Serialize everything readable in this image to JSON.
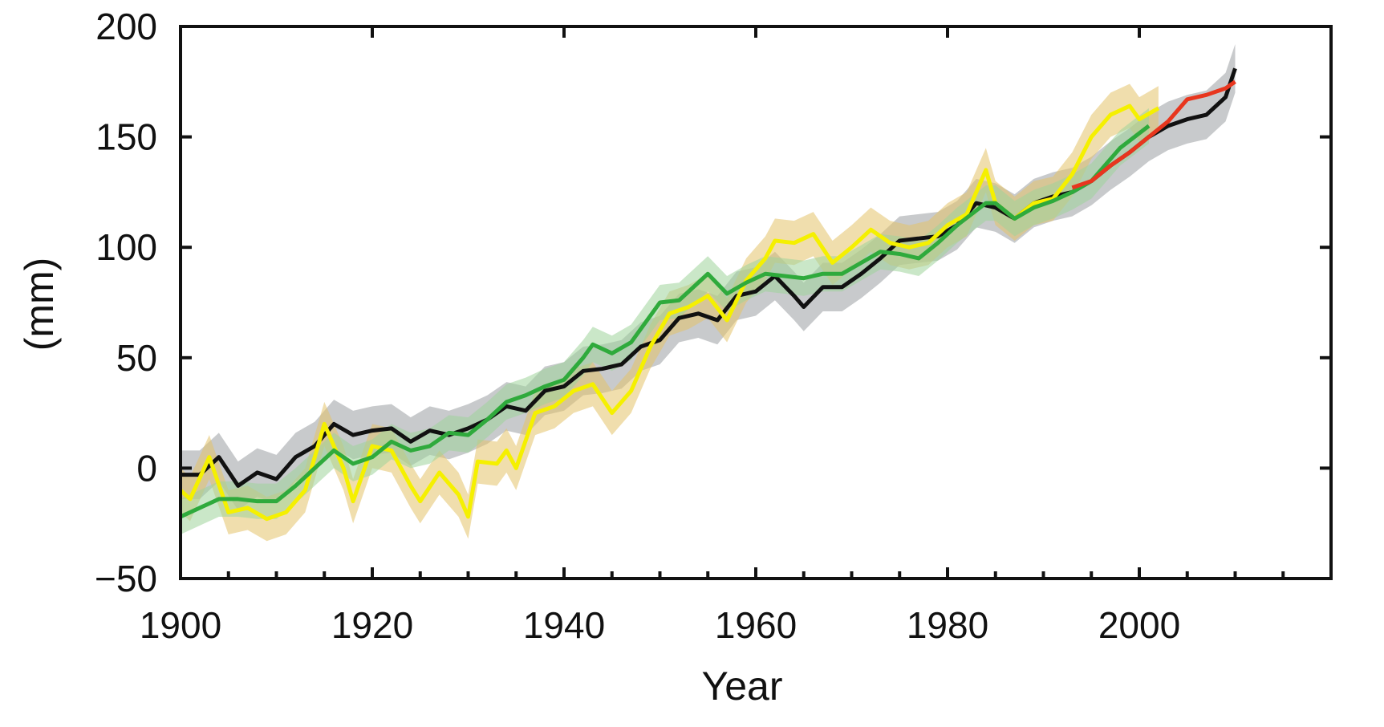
{
  "chart_data": {
    "type": "line",
    "title": "",
    "xlabel": "Year",
    "ylabel": "(mm)",
    "xlim": [
      1900,
      2020
    ],
    "ylim": [
      -50,
      200
    ],
    "xticks": [
      1900,
      1920,
      1940,
      1960,
      1980,
      2000
    ],
    "yticks": [
      -50,
      0,
      50,
      100,
      150,
      200
    ],
    "xtick_labels": [
      "1900",
      "1920",
      "1940",
      "1960",
      "1980",
      "2000"
    ],
    "ytick_labels": [
      "−50",
      "0",
      "50",
      "100",
      "150",
      "200"
    ],
    "grid": false,
    "legend": "none",
    "series": [
      {
        "name": "black",
        "color": "#111111",
        "band_color": "#9a9ea3",
        "uncertainty": 11,
        "x": [
          1900,
          1902,
          1904,
          1906,
          1908,
          1910,
          1912,
          1914,
          1916,
          1918,
          1920,
          1922,
          1924,
          1926,
          1928,
          1930,
          1932,
          1934,
          1936,
          1938,
          1940,
          1942,
          1944,
          1946,
          1948,
          1950,
          1952,
          1954,
          1956,
          1958,
          1960,
          1962,
          1964,
          1965,
          1967,
          1969,
          1971,
          1973,
          1975,
          1977,
          1979,
          1981,
          1983,
          1985,
          1987,
          1989,
          1991,
          1993,
          1995,
          1997,
          1999,
          2001,
          2003,
          2005,
          2007,
          2009,
          2010
        ],
        "y": [
          -3,
          -3,
          5,
          -8,
          -2,
          -5,
          5,
          10,
          20,
          15,
          17,
          18,
          12,
          17,
          15,
          18,
          22,
          28,
          26,
          35,
          37,
          44,
          45,
          47,
          55,
          58,
          68,
          70,
          67,
          78,
          80,
          87,
          78,
          73,
          82,
          82,
          88,
          95,
          103,
          104,
          105,
          110,
          120,
          118,
          113,
          120,
          123,
          125,
          130,
          137,
          143,
          150,
          155,
          158,
          160,
          168,
          181
        ]
      },
      {
        "name": "yellow",
        "color": "#f5f000",
        "band_color": "#e3c36a",
        "uncertainty": 10,
        "x": [
          1900,
          1901,
          1903,
          1905,
          1907,
          1909,
          1911,
          1913,
          1915,
          1917,
          1918,
          1920,
          1922,
          1924,
          1925,
          1927,
          1929,
          1930,
          1931,
          1933,
          1934,
          1935,
          1937,
          1939,
          1941,
          1943,
          1945,
          1947,
          1949,
          1951,
          1953,
          1955,
          1957,
          1959,
          1961,
          1962,
          1964,
          1966,
          1968,
          1970,
          1972,
          1974,
          1976,
          1978,
          1980,
          1982,
          1984,
          1985,
          1987,
          1989,
          1991,
          1993,
          1995,
          1997,
          1999,
          2000,
          2002
        ],
        "y": [
          -10,
          -14,
          5,
          -20,
          -18,
          -23,
          -20,
          -10,
          20,
          0,
          -15,
          10,
          8,
          -8,
          -15,
          -2,
          -12,
          -22,
          3,
          2,
          8,
          0,
          25,
          28,
          35,
          38,
          25,
          35,
          55,
          70,
          73,
          78,
          67,
          85,
          95,
          103,
          102,
          106,
          93,
          100,
          108,
          102,
          100,
          102,
          110,
          115,
          135,
          120,
          113,
          120,
          122,
          133,
          150,
          160,
          164,
          158,
          163
        ]
      },
      {
        "name": "green",
        "color": "#2faa3c",
        "band_color": "#9fd49a",
        "uncertainty": 8,
        "x": [
          1900,
          1902,
          1904,
          1906,
          1908,
          1910,
          1912,
          1914,
          1916,
          1918,
          1920,
          1922,
          1924,
          1926,
          1928,
          1930,
          1932,
          1934,
          1936,
          1938,
          1940,
          1942,
          1943,
          1945,
          1947,
          1950,
          1952,
          1955,
          1957,
          1959,
          1961,
          1963,
          1965,
          1967,
          1969,
          1971,
          1973,
          1975,
          1977,
          1979,
          1981,
          1984,
          1985,
          1987,
          1989,
          1991,
          1993,
          1995,
          1998,
          2001
        ],
        "y": [
          -22,
          -18,
          -14,
          -14,
          -15,
          -15,
          -8,
          0,
          8,
          2,
          5,
          12,
          8,
          10,
          16,
          15,
          22,
          30,
          33,
          37,
          40,
          50,
          56,
          52,
          57,
          75,
          76,
          88,
          79,
          84,
          88,
          87,
          86,
          88,
          88,
          93,
          98,
          97,
          95,
          102,
          110,
          120,
          120,
          113,
          118,
          121,
          125,
          130,
          145,
          155
        ]
      },
      {
        "name": "red",
        "color": "#e8361e",
        "band_color": "",
        "uncertainty": 0,
        "x": [
          1993,
          1995,
          1997,
          1999,
          2001,
          2003,
          2005,
          2007,
          2009,
          2010
        ],
        "y": [
          127,
          130,
          137,
          143,
          150,
          157,
          167,
          169,
          172,
          175
        ]
      }
    ]
  }
}
